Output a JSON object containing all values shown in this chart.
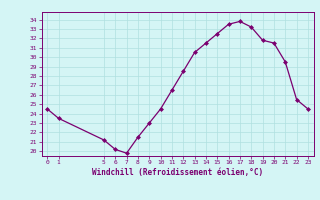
{
  "x": [
    0,
    1,
    5,
    6,
    7,
    8,
    9,
    10,
    11,
    12,
    13,
    14,
    15,
    16,
    17,
    18,
    19,
    20,
    21,
    22,
    23
  ],
  "y": [
    24.5,
    23.5,
    21.2,
    20.2,
    19.8,
    21.5,
    23.0,
    24.5,
    26.5,
    28.5,
    30.5,
    31.5,
    32.5,
    33.5,
    33.8,
    33.2,
    31.8,
    31.5,
    29.5,
    25.5,
    24.5
  ],
  "line_color": "#7b0070",
  "marker": "D",
  "marker_size": 2.0,
  "bg_color": "#d4f5f5",
  "grid_color": "#b0e0e0",
  "xlabel": "Windchill (Refroidissement éolien,°C)",
  "xlabel_color": "#7b0070",
  "tick_color": "#7b0070",
  "xticks": [
    0,
    1,
    5,
    6,
    7,
    8,
    9,
    10,
    11,
    12,
    13,
    14,
    15,
    16,
    17,
    18,
    19,
    20,
    21,
    22,
    23
  ],
  "yticks": [
    20,
    21,
    22,
    23,
    24,
    25,
    26,
    27,
    28,
    29,
    30,
    31,
    32,
    33,
    34
  ],
  "ylim": [
    19.5,
    34.8
  ],
  "xlim": [
    -0.5,
    23.5
  ]
}
